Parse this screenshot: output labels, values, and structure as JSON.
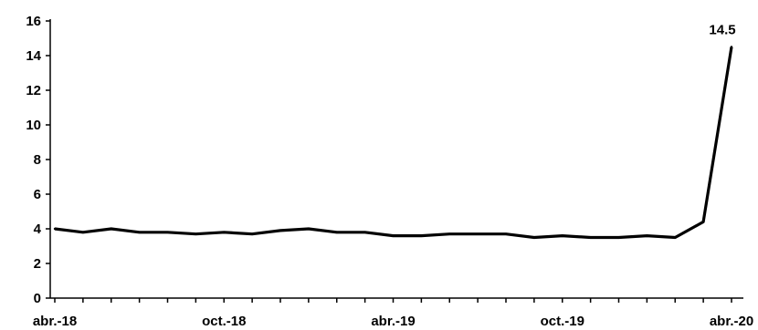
{
  "chart_data": {
    "type": "line",
    "title": "",
    "xlabel": "",
    "ylabel": "",
    "ylim": [
      0,
      16
    ],
    "yticks": [
      0,
      2,
      4,
      6,
      8,
      10,
      12,
      14,
      16
    ],
    "x_tick_labels": [
      "abr.-18",
      "oct.-18",
      "abr.-19",
      "oct.-19",
      "abr.-20"
    ],
    "x": [
      "2018-04",
      "2018-05",
      "2018-06",
      "2018-07",
      "2018-08",
      "2018-09",
      "2018-10",
      "2018-11",
      "2018-12",
      "2019-01",
      "2019-02",
      "2019-03",
      "2019-04",
      "2019-05",
      "2019-06",
      "2019-07",
      "2019-08",
      "2019-09",
      "2019-10",
      "2019-11",
      "2019-12",
      "2020-01",
      "2020-02",
      "2020-03",
      "2020-04"
    ],
    "series": [
      {
        "values": [
          4.0,
          3.8,
          4.0,
          3.8,
          3.8,
          3.7,
          3.8,
          3.7,
          3.9,
          4.0,
          3.8,
          3.8,
          3.6,
          3.6,
          3.7,
          3.7,
          3.7,
          3.5,
          3.6,
          3.5,
          3.5,
          3.6,
          3.5,
          4.4,
          14.5
        ],
        "color": "#000000"
      }
    ],
    "annotations": [
      {
        "text": "14.5",
        "x": "2020-04",
        "y": 14.5
      }
    ],
    "grid": false,
    "legend": "none"
  }
}
